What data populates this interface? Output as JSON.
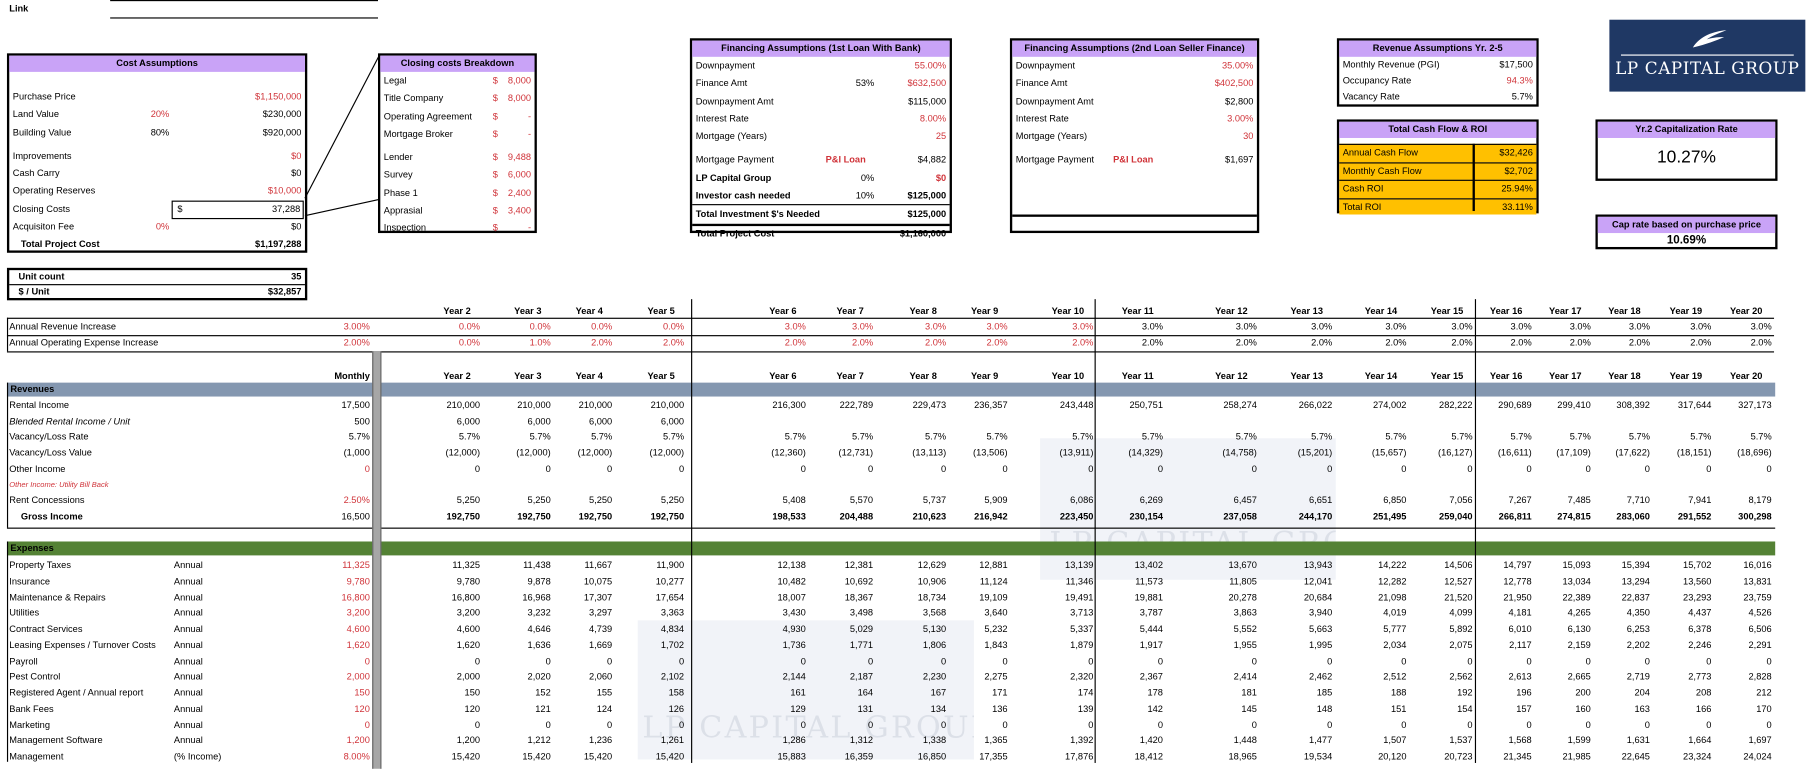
{
  "link": {
    "label": "Link"
  },
  "cost_assumptions": {
    "title": "Cost Assumptions",
    "purchase_price": {
      "label": "Purchase Price",
      "value": "$1,150,000"
    },
    "land_value": {
      "label": "Land Value",
      "pct": "20%",
      "value": "$230,000"
    },
    "building_value": {
      "label": "Building Value",
      "pct": "80%",
      "value": "$920,000"
    },
    "improvements": {
      "label": "Improvements",
      "value": "$0"
    },
    "cash_carry": {
      "label": "Cash Carry",
      "value": "$0"
    },
    "operating_reserves": {
      "label": "Operating Reserves",
      "value": "$10,000"
    },
    "closing_costs": {
      "label": "Closing Costs",
      "currency": "$",
      "value": "37,288"
    },
    "acquisition_fee": {
      "label": "Acquisiton Fee",
      "pct": "0%",
      "value": "$0"
    },
    "total": {
      "label": "Total Project Cost",
      "value": "$1,197,288"
    }
  },
  "closing_breakdown": {
    "title": "Closing costs Breakdown",
    "items": [
      {
        "label": "Legal",
        "currency": "$",
        "value": "8,000"
      },
      {
        "label": "Title Company",
        "currency": "$",
        "value": "8,000"
      },
      {
        "label": "Operating Agreement",
        "currency": "$",
        "value": "-"
      },
      {
        "label": "Mortgage Broker",
        "currency": "$",
        "value": "-"
      },
      {
        "label": "Lender",
        "currency": "$",
        "value": "9,488"
      },
      {
        "label": "Survey",
        "currency": "$",
        "value": "6,000"
      },
      {
        "label": "Phase 1",
        "currency": "$",
        "value": "2,400"
      },
      {
        "label": "Apprasial",
        "currency": "$",
        "value": "3,400"
      },
      {
        "label": "Inspection",
        "currency": "$",
        "value": "-"
      }
    ]
  },
  "financing1": {
    "title": "Financing Assumptions (1st Loan With Bank)",
    "downpayment": {
      "label": "Downpayment",
      "value": "55.00%"
    },
    "finance_amt": {
      "label": "Finance Amt",
      "pct": "53%",
      "value": "$632,500"
    },
    "downpayment_amt": {
      "label": "Downpayment Amt",
      "value": "$115,000"
    },
    "interest_rate": {
      "label": "Interest Rate",
      "value": "8.00%"
    },
    "mortgage_years": {
      "label": "Mortgage (Years)",
      "value": "25"
    },
    "mortgage_payment": {
      "label": "Mortgage Payment",
      "type": "P&I Loan",
      "value": "$4,882"
    },
    "lp_capital": {
      "label": "LP Capital Group",
      "pct": "0%",
      "value": "$0"
    },
    "investor_cash": {
      "label": "Investor cash needed",
      "pct": "10%",
      "value": "$125,000"
    },
    "total_investment": {
      "label": "Total Investment $'s Needed",
      "value": "$125,000"
    },
    "total_project_cost": {
      "label": "Total Project Cost",
      "value": "$1,160,000"
    }
  },
  "financing2": {
    "title": "Financing Assumptions (2nd Loan Seller Finance)",
    "downpayment": {
      "label": "Downpayment",
      "value": "35.00%"
    },
    "finance_amt": {
      "label": "Finance Amt",
      "value": "$402,500"
    },
    "downpayment_amt": {
      "label": "Downpayment Amt",
      "value": "$2,800"
    },
    "interest_rate": {
      "label": "Interest Rate",
      "value": "3.00%"
    },
    "mortgage_years": {
      "label": "Mortgage (Years)",
      "value": "30"
    },
    "mortgage_payment": {
      "label": "Mortgage Payment",
      "type": "P&I Loan",
      "value": "$1,697"
    }
  },
  "revenue_assumptions": {
    "title": "Revenue Assumptions Yr. 2-5",
    "rows": [
      {
        "label": "Monthly Revenue (PGI)",
        "value": "$17,500"
      },
      {
        "label": "Occupancy Rate",
        "value": "94.3%"
      },
      {
        "label": "Vacancy Rate",
        "value": "5.7%"
      }
    ]
  },
  "cash_flow_roi": {
    "title": "Total Cash Flow & ROI",
    "rows": [
      {
        "label": "Annual Cash Flow",
        "value": "$32,426"
      },
      {
        "label": "Monthly Cash Flow",
        "value": "$2,702"
      },
      {
        "label": "Cash ROI",
        "value": "25.94%"
      },
      {
        "label": "Total ROI",
        "value": "33.11%"
      }
    ]
  },
  "logo": {
    "text": "LP CAPITAL GROUP"
  },
  "cap_rate_yr2": {
    "title": "Yr.2 Capitalization Rate",
    "value": "10.27%"
  },
  "cap_rate_purchase": {
    "title": "Cap rate based on purchase price",
    "value": "10.69%"
  },
  "units": {
    "unit_count": {
      "label": "Unit count",
      "value": "35"
    },
    "per_unit": {
      "label": "$ / Unit",
      "value": "$32,857"
    }
  },
  "watermark_text": "LP CAPITAL GROUP",
  "colors": {
    "input_red": "#d0343a",
    "purple_header": "#c9a3f7",
    "revenue_band": "#8497b0",
    "expense_band": "#548235",
    "orange": "#ffc000",
    "logo_navy": "#1f3864"
  },
  "table": {
    "monthly_label": "Monthly",
    "years": [
      "Year 2",
      "Year 3",
      "Year 4",
      "Year 5",
      "Year 6",
      "Year 7",
      "Year 8",
      "Year 9",
      "Year 10",
      "Year 11",
      "Year 12",
      "Year 13",
      "Year 14",
      "Year 15",
      "Year 16",
      "Year 17",
      "Year 18",
      "Year 19",
      "Year 20"
    ],
    "increases": [
      {
        "label": "Annual Revenue Increase",
        "monthly": "3.00%",
        "values": [
          "0.0%",
          "0.0%",
          "0.0%",
          "0.0%",
          "3.0%",
          "3.0%",
          "3.0%",
          "3.0%",
          "3.0%",
          "3.0%",
          "3.0%",
          "3.0%",
          "3.0%",
          "3.0%",
          "3.0%",
          "3.0%",
          "3.0%",
          "3.0%",
          "3.0%"
        ]
      },
      {
        "label": "Annual Operating Expense Increase",
        "monthly": "2.00%",
        "values": [
          "0.0%",
          "1.0%",
          "2.0%",
          "2.0%",
          "2.0%",
          "2.0%",
          "2.0%",
          "2.0%",
          "2.0%",
          "2.0%",
          "2.0%",
          "2.0%",
          "2.0%",
          "2.0%",
          "2.0%",
          "2.0%",
          "2.0%",
          "2.0%",
          "2.0%"
        ]
      }
    ],
    "revenues_title": "Revenues",
    "revenues": [
      {
        "label": "Rental Income",
        "monthly": "17,500",
        "values": [
          "210,000",
          "210,000",
          "210,000",
          "210,000",
          "216,300",
          "222,789",
          "229,473",
          "236,357",
          "243,448",
          "250,751",
          "258,274",
          "266,022",
          "274,002",
          "282,222",
          "290,689",
          "299,410",
          "308,392",
          "317,644",
          "327,173"
        ]
      },
      {
        "label": "Blended Rental Income / Unit",
        "style": "italic",
        "monthly": "500",
        "values": [
          "6,000",
          "6,000",
          "6,000",
          "6,000"
        ]
      },
      {
        "label": "Vacancy/Loss Rate",
        "monthly": "5.7%",
        "values": [
          "5.7%",
          "5.7%",
          "5.7%",
          "5.7%",
          "5.7%",
          "5.7%",
          "5.7%",
          "5.7%",
          "5.7%",
          "5.7%",
          "5.7%",
          "5.7%",
          "5.7%",
          "5.7%",
          "5.7%",
          "5.7%",
          "5.7%",
          "5.7%",
          "5.7%"
        ]
      },
      {
        "label": "Vacancy/Loss Value",
        "monthly": "(1,000",
        "values": [
          "(12,000)",
          "(12,000)",
          "(12,000)",
          "(12,000)",
          "(12,360)",
          "(12,731)",
          "(13,113)",
          "(13,506)",
          "(13,911)",
          "(14,329)",
          "(14,758)",
          "(15,201)",
          "(15,657)",
          "(16,127)",
          "(16,611)",
          "(17,109)",
          "(17,622)",
          "(18,151)",
          "(18,696)"
        ]
      },
      {
        "label": "Other Income",
        "style": "input",
        "monthly": "0",
        "values": [
          "0",
          "0",
          "0",
          "0",
          "0",
          "0",
          "0",
          "0",
          "0",
          "0",
          "0",
          "0",
          "0",
          "0",
          "0",
          "0",
          "0",
          "0",
          "0"
        ]
      },
      {
        "label": "Other Income: Utility Bill Back",
        "style": "note",
        "values": []
      },
      {
        "label": "Rent Concessions",
        "style": "input",
        "monthly": "2.50%",
        "values": [
          "5,250",
          "5,250",
          "5,250",
          "5,250",
          "5,408",
          "5,570",
          "5,737",
          "5,909",
          "6,086",
          "6,269",
          "6,457",
          "6,651",
          "6,850",
          "7,056",
          "7,267",
          "7,485",
          "7,710",
          "7,941",
          "8,179"
        ]
      },
      {
        "label": "Gross Income",
        "style": "total",
        "monthly": "16,500",
        "values": [
          "192,750",
          "192,750",
          "192,750",
          "192,750",
          "198,533",
          "204,488",
          "210,623",
          "216,942",
          "223,450",
          "230,154",
          "237,058",
          "244,170",
          "251,495",
          "259,040",
          "266,811",
          "274,815",
          "283,060",
          "291,552",
          "300,298"
        ]
      }
    ],
    "expenses_title": "Expenses",
    "expenses": [
      {
        "label": "Property Taxes",
        "basis": "Annual",
        "monthly": "11,325",
        "values": [
          "11,325",
          "11,438",
          "11,667",
          "11,900",
          "12,138",
          "12,381",
          "12,629",
          "12,881",
          "13,139",
          "13,402",
          "13,670",
          "13,943",
          "14,222",
          "14,506",
          "14,797",
          "15,093",
          "15,394",
          "15,702",
          "16,016"
        ]
      },
      {
        "label": "Insurance",
        "basis": "Annual",
        "monthly": "9,780",
        "values": [
          "9,780",
          "9,878",
          "10,075",
          "10,277",
          "10,482",
          "10,692",
          "10,906",
          "11,124",
          "11,346",
          "11,573",
          "11,805",
          "12,041",
          "12,282",
          "12,527",
          "12,778",
          "13,034",
          "13,294",
          "13,560",
          "13,831"
        ]
      },
      {
        "label": "Maintenance & Repairs",
        "basis": "Annual",
        "monthly": "16,800",
        "values": [
          "16,800",
          "16,968",
          "17,307",
          "17,654",
          "18,007",
          "18,367",
          "18,734",
          "19,109",
          "19,491",
          "19,881",
          "20,278",
          "20,684",
          "21,098",
          "21,520",
          "21,950",
          "22,389",
          "22,837",
          "23,293",
          "23,759"
        ]
      },
      {
        "label": "Utilities",
        "basis": "Annual",
        "monthly": "3,200",
        "values": [
          "3,200",
          "3,232",
          "3,297",
          "3,363",
          "3,430",
          "3,498",
          "3,568",
          "3,640",
          "3,713",
          "3,787",
          "3,863",
          "3,940",
          "4,019",
          "4,099",
          "4,181",
          "4,265",
          "4,350",
          "4,437",
          "4,526"
        ]
      },
      {
        "label": "Contract Services",
        "basis": "Annual",
        "monthly": "4,600",
        "values": [
          "4,600",
          "4,646",
          "4,739",
          "4,834",
          "4,930",
          "5,029",
          "5,130",
          "5,232",
          "5,337",
          "5,444",
          "5,552",
          "5,663",
          "5,777",
          "5,892",
          "6,010",
          "6,130",
          "6,253",
          "6,378",
          "6,506"
        ]
      },
      {
        "label": "Leasing Expenses / Turnover Costs",
        "basis": "Annual",
        "monthly": "1,620",
        "values": [
          "1,620",
          "1,636",
          "1,669",
          "1,702",
          "1,736",
          "1,771",
          "1,806",
          "1,843",
          "1,879",
          "1,917",
          "1,955",
          "1,995",
          "2,034",
          "2,075",
          "2,117",
          "2,159",
          "2,202",
          "2,246",
          "2,291"
        ]
      },
      {
        "label": "Payroll",
        "basis": "Annual",
        "monthly": "0",
        "values": [
          "0",
          "0",
          "0",
          "0",
          "0",
          "0",
          "0",
          "0",
          "0",
          "0",
          "0",
          "0",
          "0",
          "0",
          "0",
          "0",
          "0",
          "0",
          "0"
        ]
      },
      {
        "label": "Pest Control",
        "basis": "Annual",
        "monthly": "2,000",
        "values": [
          "2,000",
          "2,020",
          "2,060",
          "2,102",
          "2,144",
          "2,187",
          "2,230",
          "2,275",
          "2,320",
          "2,367",
          "2,414",
          "2,462",
          "2,512",
          "2,562",
          "2,613",
          "2,665",
          "2,719",
          "2,773",
          "2,828"
        ]
      },
      {
        "label": "Registered Agent / Annual report",
        "basis": "Annual",
        "monthly": "150",
        "values": [
          "150",
          "152",
          "155",
          "158",
          "161",
          "164",
          "167",
          "171",
          "174",
          "178",
          "181",
          "185",
          "188",
          "192",
          "196",
          "200",
          "204",
          "208",
          "212"
        ]
      },
      {
        "label": "Bank Fees",
        "basis": "Annual",
        "monthly": "120",
        "values": [
          "120",
          "121",
          "124",
          "126",
          "129",
          "131",
          "134",
          "136",
          "139",
          "142",
          "145",
          "148",
          "151",
          "154",
          "157",
          "160",
          "163",
          "166",
          "170"
        ]
      },
      {
        "label": "Marketing",
        "basis": "Annual",
        "monthly": "0",
        "values": [
          "0",
          "0",
          "0",
          "0",
          "0",
          "0",
          "0",
          "0",
          "0",
          "0",
          "0",
          "0",
          "0",
          "0",
          "0",
          "0",
          "0",
          "0",
          "0"
        ]
      },
      {
        "label": "Management Software",
        "basis": "Annual",
        "monthly": "1,200",
        "values": [
          "1,200",
          "1,212",
          "1,236",
          "1,261",
          "1,286",
          "1,312",
          "1,338",
          "1,365",
          "1,392",
          "1,420",
          "1,448",
          "1,477",
          "1,507",
          "1,537",
          "1,568",
          "1,599",
          "1,631",
          "1,664",
          "1,697"
        ]
      },
      {
        "label": "Management",
        "basis": "(% Income)",
        "monthly": "8.00%",
        "values": [
          "15,420",
          "15,420",
          "15,420",
          "15,420",
          "15,883",
          "16,359",
          "16,850",
          "17,355",
          "17,876",
          "18,412",
          "18,965",
          "19,534",
          "20,120",
          "20,723",
          "21,345",
          "21,985",
          "22,645",
          "23,324",
          "24,024"
        ]
      }
    ]
  }
}
